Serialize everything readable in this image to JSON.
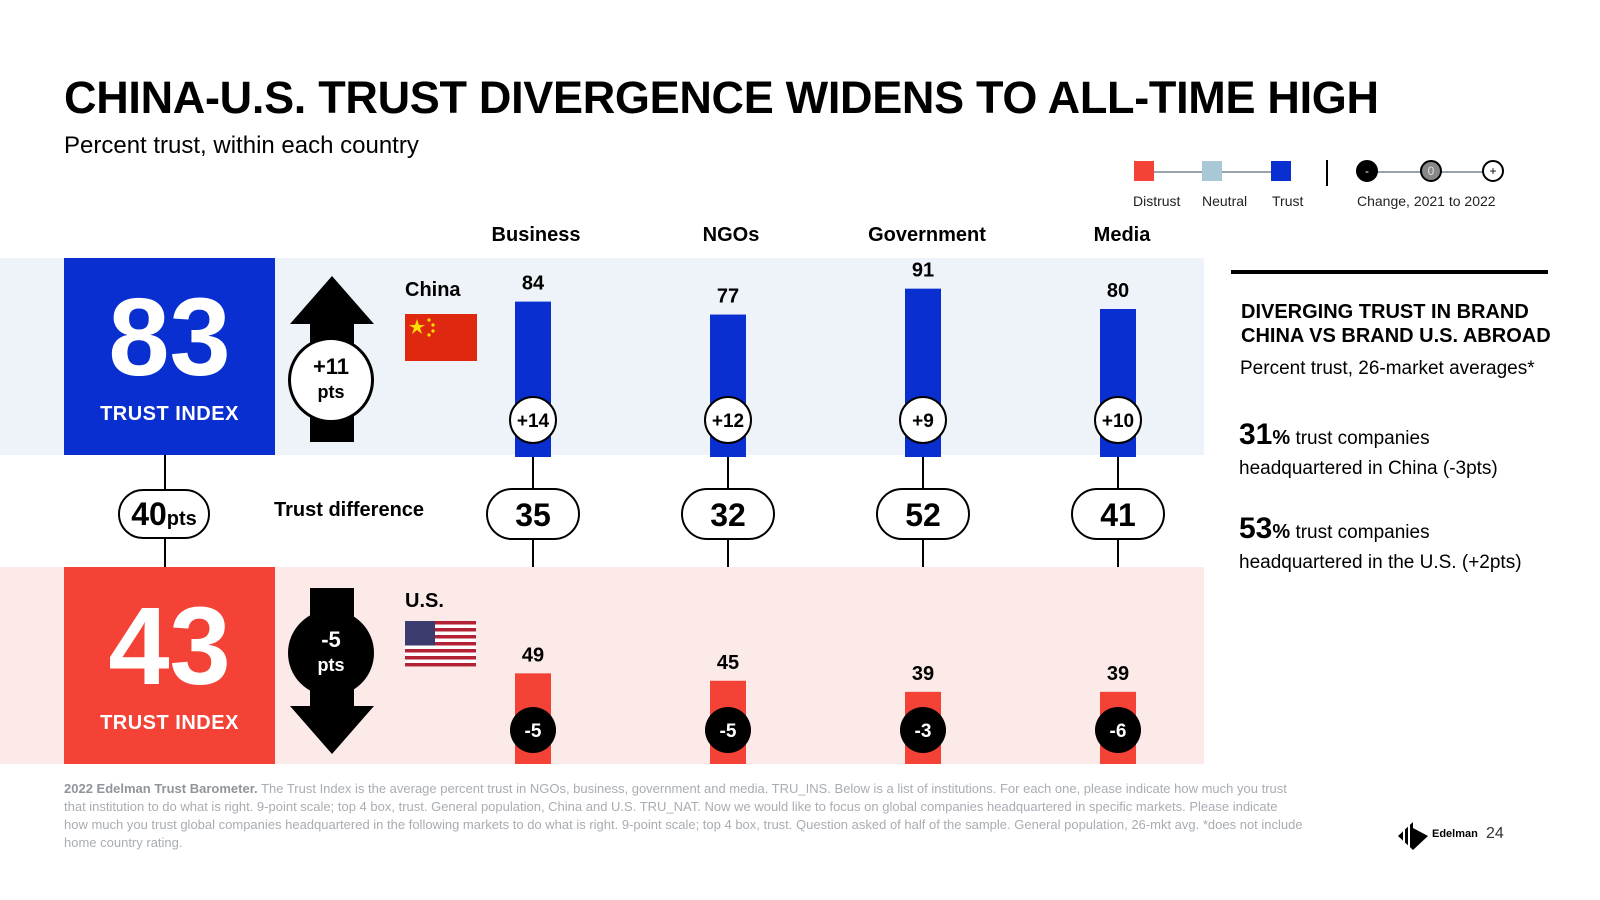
{
  "title": "CHINA-U.S. TRUST DIVERGENCE WIDENS TO ALL-TIME HIGH",
  "subtitle": "Percent trust, within each country",
  "legend": {
    "distrust": "Distrust",
    "neutral": "Neutral",
    "trust": "Trust",
    "change_label": "Change, 2021 to 2022",
    "minus": "-",
    "zero": "0",
    "plus": "+",
    "colors": {
      "distrust": "#f44336",
      "neutral": "#a9c8d6",
      "trust": "#0a2fd1"
    }
  },
  "china": {
    "country": "China",
    "index": "83",
    "index_label": "TRUST INDEX",
    "change_value": "+11",
    "change_unit": "pts"
  },
  "us": {
    "country": "U.S.",
    "index": "43",
    "index_label": "TRUST INDEX",
    "change_value": "-5",
    "change_unit": "pts"
  },
  "difference": {
    "label": "Trust difference",
    "index_value": "40",
    "index_unit": "pts"
  },
  "chart_data": {
    "type": "bar",
    "categories": [
      "Business",
      "NGOs",
      "Government",
      "Media"
    ],
    "series": [
      {
        "name": "China",
        "values": [
          84,
          77,
          91,
          80
        ],
        "changes": [
          "+14",
          "+12",
          "+9",
          "+10"
        ],
        "color": "#0a2fd1"
      },
      {
        "name": "U.S.",
        "values": [
          49,
          45,
          39,
          39
        ],
        "changes": [
          "-5",
          "-5",
          "-3",
          "-6"
        ],
        "color": "#f44336"
      }
    ],
    "differences": [
      35,
      32,
      52,
      41
    ],
    "ylim": [
      0,
      100
    ]
  },
  "sidebar": {
    "heading_line1": "DIVERGING TRUST IN BRAND",
    "heading_line2": "CHINA VS BRAND U.S. ABROAD",
    "subheading": "Percent trust, 26-market averages*",
    "stat1_value": "31",
    "stat1_pct": "%",
    "stat1_text": "trust companies",
    "stat1_text2": "headquartered in China (-3pts)",
    "stat2_value": "53",
    "stat2_pct": "%",
    "stat2_text": "trust companies",
    "stat2_text2": "headquartered in the U.S. (+2pts)"
  },
  "footnote": {
    "source": "2022 Edelman Trust Barometer.",
    "text": "The Trust Index is the average percent trust in NGOs, business, government and media. TRU_INS. Below is a list of institutions. For each one, please indicate how much you trust that institution to do what is right. 9-point scale; top 4 box, trust. General population, China and U.S. TRU_NAT. Now we would like to focus on global companies headquartered in specific markets. Please indicate how much you trust global companies headquartered in the following markets to do what is right. 9-point scale; top 4 box, trust. Question asked of half of the sample. General population, 26-mkt avg. *does not include home country rating."
  },
  "logo_text": "Edelman",
  "page_number": "24"
}
